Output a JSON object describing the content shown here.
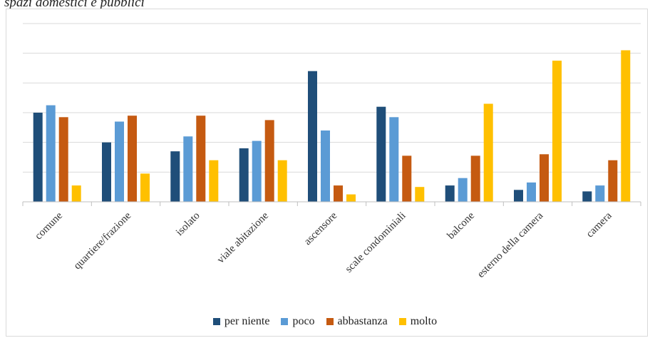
{
  "chart_data": {
    "type": "bar",
    "title": "spazi domestici e pubblici",
    "categories": [
      "comune",
      "quartiere/frazione",
      "isolato",
      "viale abitazione",
      "ascensore",
      "scale condominiali",
      "balcone",
      "esterno della camera",
      "camera"
    ],
    "series": [
      {
        "name": "per niente",
        "color": "#1f4e79",
        "values": [
          30,
          20,
          17,
          18,
          44,
          32,
          5.5,
          4,
          3.5
        ]
      },
      {
        "name": "poco",
        "color": "#5b9bd5",
        "values": [
          32.5,
          27,
          22,
          20.5,
          24,
          28.5,
          8,
          6.5,
          5.5
        ]
      },
      {
        "name": "abbastanza",
        "color": "#c55a11",
        "values": [
          28.5,
          29,
          29,
          27.5,
          5.5,
          15.5,
          15.5,
          16,
          14
        ]
      },
      {
        "name": "molto",
        "color": "#ffc000",
        "values": [
          5.5,
          9.5,
          14,
          14,
          2.5,
          5,
          33,
          47.5,
          51
        ]
      }
    ],
    "ylim": [
      0,
      60
    ],
    "grid": true,
    "legend_position": "bottom"
  }
}
